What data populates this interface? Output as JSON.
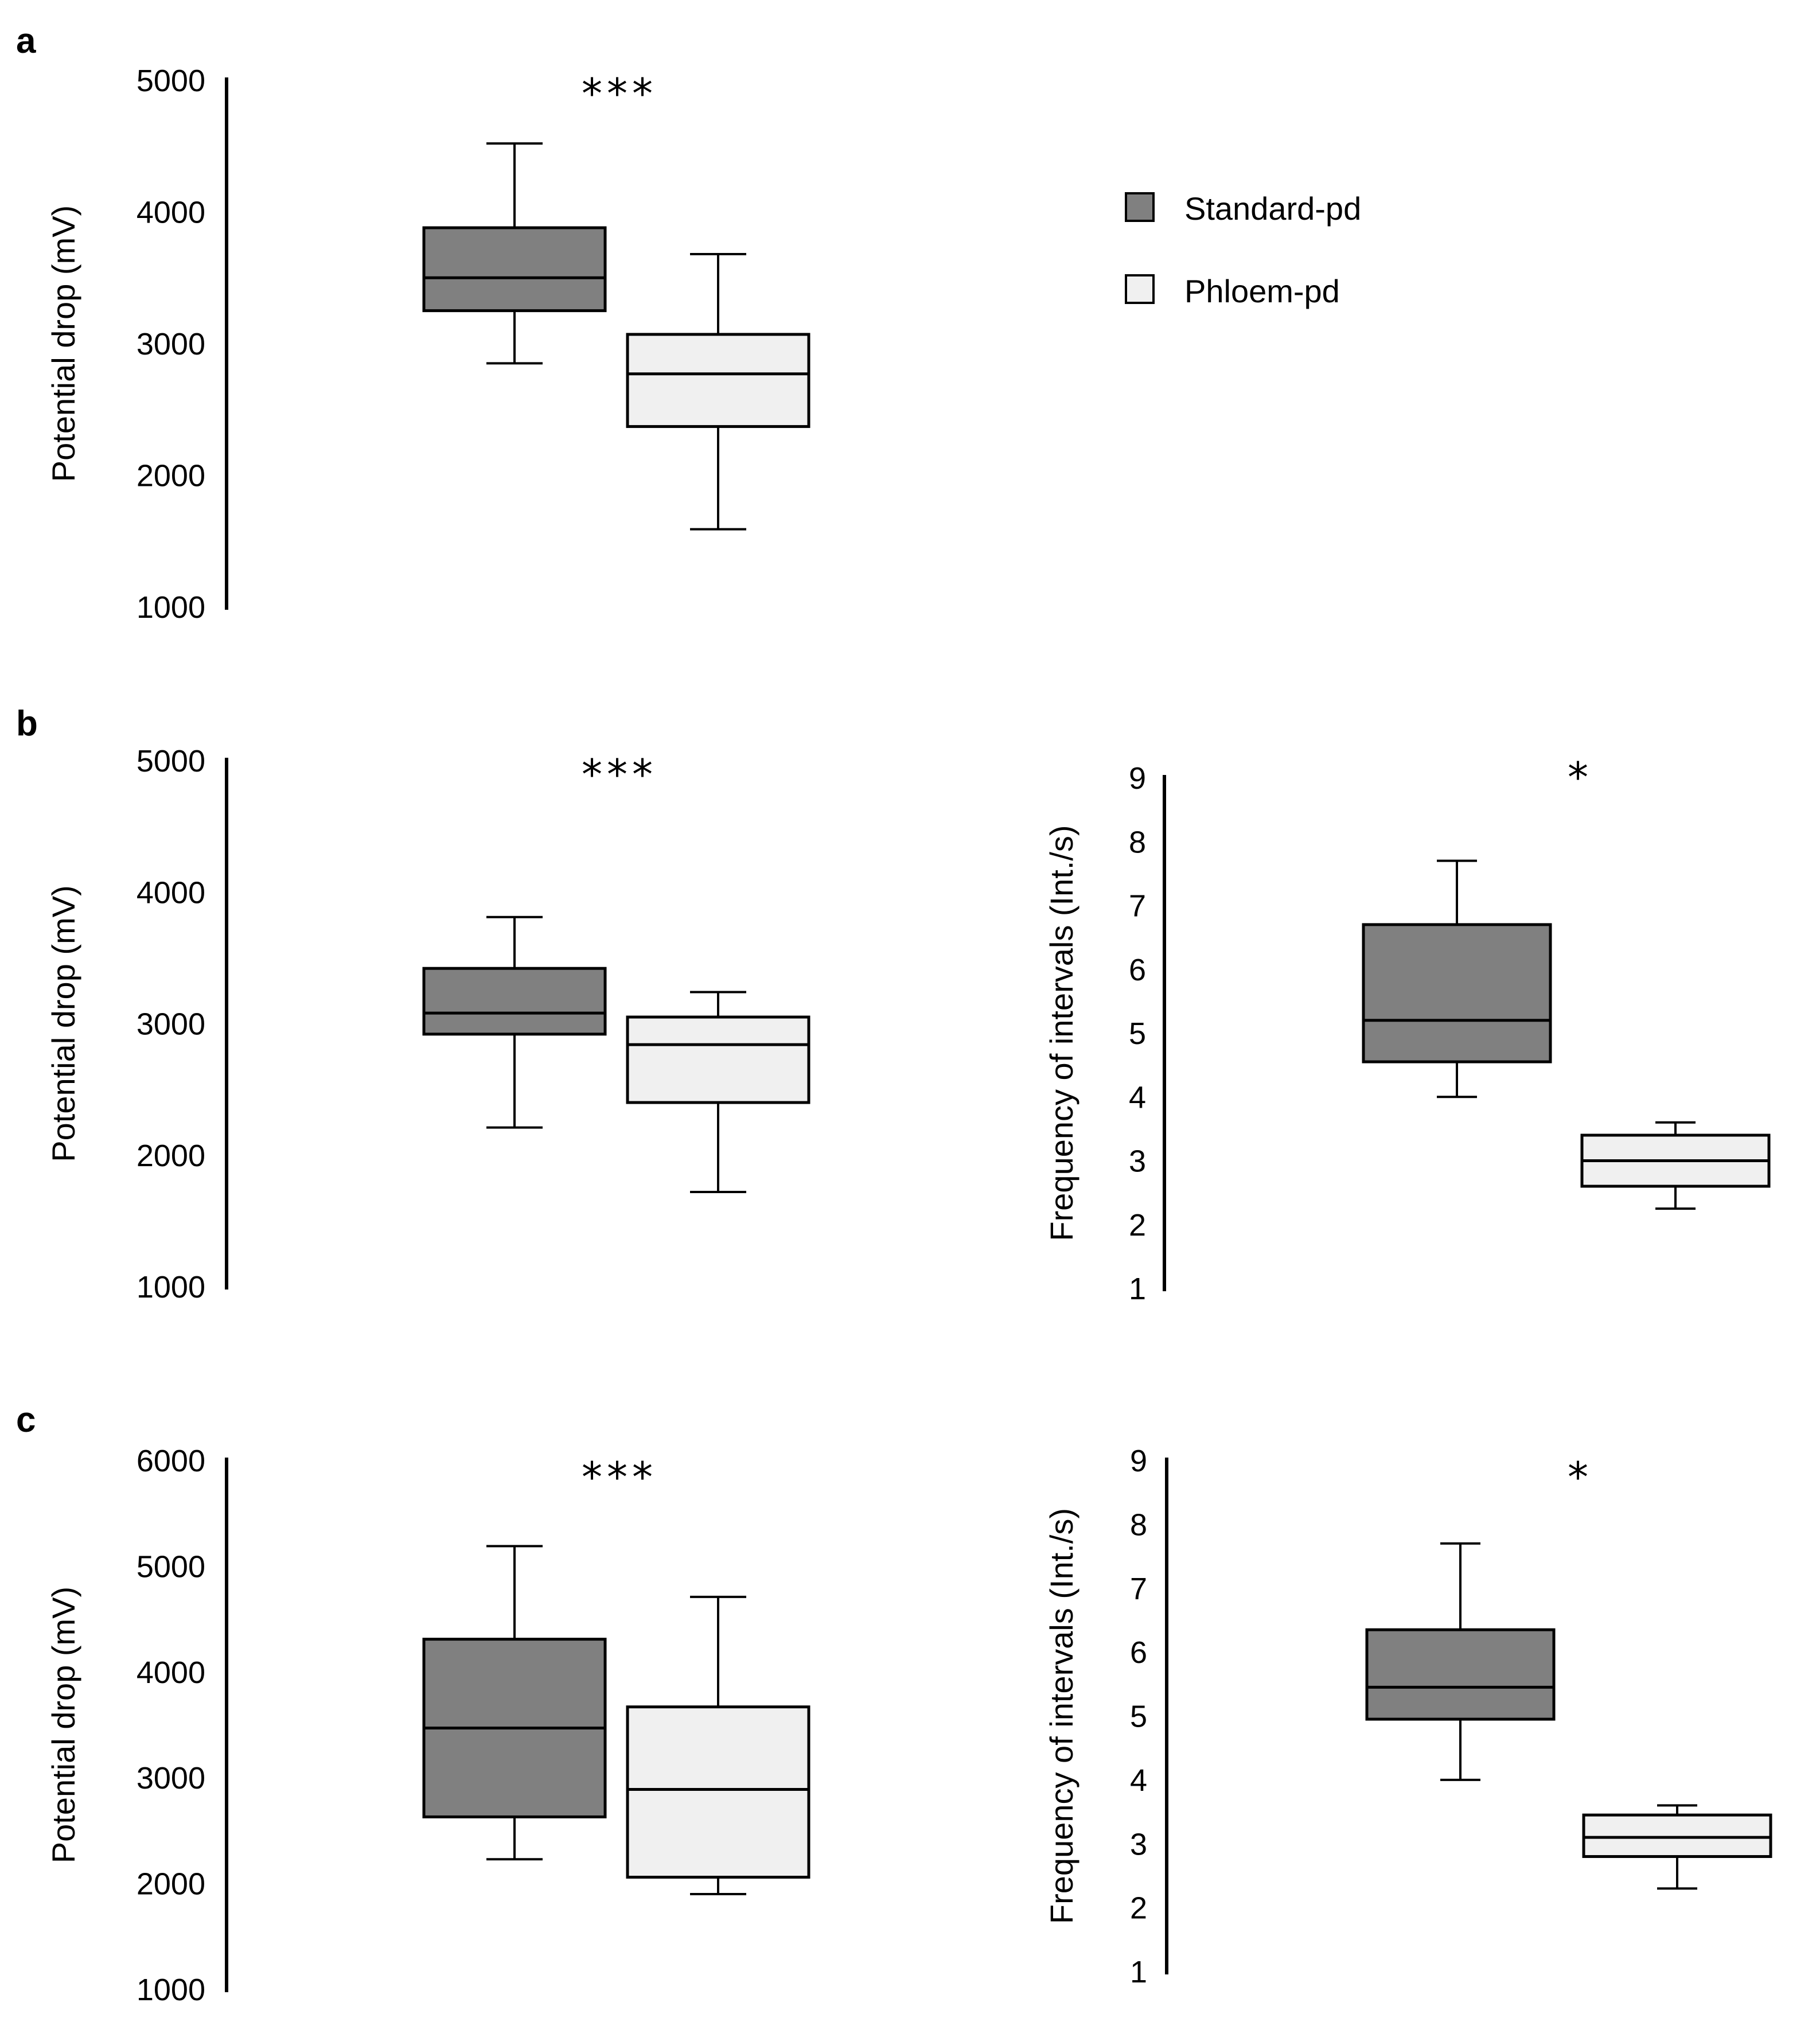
{
  "colors": {
    "standard_fill": "#808080",
    "phloem_fill": "#f0f0f0",
    "stroke": "#000000"
  },
  "legend": {
    "items": [
      {
        "label": "Standard-pd",
        "color": "#808080"
      },
      {
        "label": "Phloem-pd",
        "color": "#f0f0f0"
      }
    ]
  },
  "chart_data": [
    {
      "panel": "a",
      "type": "boxplot",
      "ylabel": "Potential drop (mV)",
      "ylim": [
        1000,
        5000
      ],
      "yticks": [
        1000,
        2000,
        3000,
        4000,
        5000
      ],
      "significance": "***",
      "series": [
        {
          "name": "Standard-pd",
          "whisker_low": 2850,
          "q1": 3250,
          "median": 3500,
          "q3": 3880,
          "whisker_high": 4520
        },
        {
          "name": "Phloem-pd",
          "whisker_low": 1590,
          "q1": 2370,
          "median": 2770,
          "q3": 3070,
          "whisker_high": 3680
        }
      ]
    },
    {
      "panel": "b",
      "type": "boxplot",
      "ylabel": "Potential drop (mV)",
      "ylim": [
        1000,
        5000
      ],
      "yticks": [
        1000,
        2000,
        3000,
        4000,
        5000
      ],
      "significance": "***",
      "series": [
        {
          "name": "Standard-pd",
          "whisker_low": 2210,
          "q1": 2920,
          "median": 3080,
          "q3": 3420,
          "whisker_high": 3810
        },
        {
          "name": "Phloem-pd",
          "whisker_low": 1720,
          "q1": 2400,
          "median": 2840,
          "q3": 3050,
          "whisker_high": 3240
        }
      ]
    },
    {
      "panel": "b",
      "type": "boxplot",
      "ylabel": "Frequency of intervals (Int./s)",
      "ylim": [
        1,
        9
      ],
      "yticks": [
        1,
        2,
        3,
        4,
        5,
        6,
        7,
        8,
        9
      ],
      "significance": "*",
      "series": [
        {
          "name": "Standard-pd",
          "whisker_low": 4.0,
          "q1": 4.55,
          "median": 5.2,
          "q3": 6.7,
          "whisker_high": 7.7
        },
        {
          "name": "Phloem-pd",
          "whisker_low": 2.25,
          "q1": 2.6,
          "median": 3.0,
          "q3": 3.4,
          "whisker_high": 3.6
        }
      ]
    },
    {
      "panel": "c",
      "type": "boxplot",
      "ylabel": "Potential drop (mV)",
      "ylim": [
        1000,
        6000
      ],
      "yticks": [
        1000,
        2000,
        3000,
        4000,
        5000,
        6000
      ],
      "significance": "***",
      "series": [
        {
          "name": "Standard-pd",
          "whisker_low": 2230,
          "q1": 2630,
          "median": 3470,
          "q3": 4310,
          "whisker_high": 5190
        },
        {
          "name": "Phloem-pd",
          "whisker_low": 1900,
          "q1": 2060,
          "median": 2890,
          "q3": 3670,
          "whisker_high": 4710
        }
      ]
    },
    {
      "panel": "c",
      "type": "boxplot",
      "ylabel": "Frequency of intervals (Int./s)",
      "ylim": [
        1,
        9
      ],
      "yticks": [
        1,
        2,
        3,
        4,
        5,
        6,
        7,
        8,
        9
      ],
      "significance": "*",
      "series": [
        {
          "name": "Standard-pd",
          "whisker_low": 4.0,
          "q1": 4.95,
          "median": 5.45,
          "q3": 6.35,
          "whisker_high": 7.7
        },
        {
          "name": "Phloem-pd",
          "whisker_low": 2.3,
          "q1": 2.8,
          "median": 3.1,
          "q3": 3.45,
          "whisker_high": 3.6
        }
      ]
    }
  ]
}
